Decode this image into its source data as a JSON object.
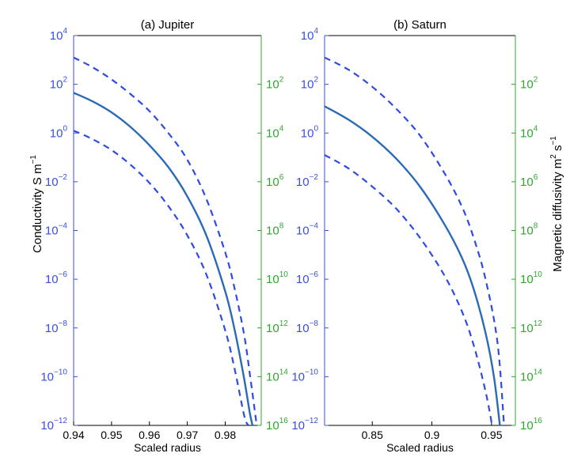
{
  "colors": {
    "conductivity_axis": "#3a4fe0",
    "diffusivity_axis": "#2fa52f",
    "mean_line": "#2b6bb5",
    "bound_lines": "#2f4be0",
    "frame": "#000000"
  },
  "left_axis_label": "Conductivity S m",
  "left_axis_label_exp": "−1",
  "right_axis_label": "Magnetic diffusivity m",
  "right_axis_label_exp1": "2",
  "right_axis_label_mid": " s",
  "right_axis_label_exp2": "−1",
  "chart_data": [
    {
      "type": "line",
      "title": "(a) Jupiter",
      "xlabel": "Scaled radius",
      "ylabel": "Conductivity S m−1",
      "y2label": "",
      "xlim": [
        0.94,
        0.9895
      ],
      "x_ticks": [
        0.94,
        0.95,
        0.96,
        0.97,
        0.98
      ],
      "x_tick_labels": [
        "0.94",
        "0.95",
        "0.96",
        "0.97",
        "0.98"
      ],
      "y_scale": "log",
      "ylim_exp": [
        -12,
        4
      ],
      "y_ticks_exp": [
        4,
        2,
        0,
        -2,
        -4,
        -6,
        -8,
        -10,
        -12
      ],
      "y2_scale": "log-reversed",
      "y2_ticks_exp": [
        2,
        4,
        6,
        8,
        10,
        12,
        14,
        16
      ],
      "series": [
        {
          "style": "dashed",
          "x": [
            0.94,
            0.945,
            0.95,
            0.955,
            0.96,
            0.965,
            0.97,
            0.975,
            0.98,
            0.9825,
            0.985,
            0.9865,
            0.9883
          ],
          "log10_y": [
            3.1,
            2.7,
            2.2,
            1.6,
            0.9,
            0.0,
            -1.1,
            -2.7,
            -4.9,
            -6.4,
            -8.3,
            -9.9,
            -12.0
          ]
        },
        {
          "style": "solid",
          "x": [
            0.94,
            0.945,
            0.95,
            0.955,
            0.96,
            0.965,
            0.97,
            0.975,
            0.98,
            0.9825,
            0.985,
            0.9865,
            0.9872
          ],
          "log10_y": [
            1.65,
            1.3,
            0.85,
            0.25,
            -0.5,
            -1.4,
            -2.6,
            -4.2,
            -6.5,
            -8.1,
            -10.1,
            -11.5,
            -12.0
          ]
        },
        {
          "style": "dashed",
          "x": [
            0.94,
            0.945,
            0.95,
            0.955,
            0.96,
            0.965,
            0.97,
            0.975,
            0.98,
            0.9825,
            0.985,
            0.9861
          ],
          "log10_y": [
            0.1,
            -0.25,
            -0.7,
            -1.3,
            -2.05,
            -3.0,
            -4.2,
            -5.8,
            -8.1,
            -9.7,
            -11.6,
            -12.0
          ]
        }
      ]
    },
    {
      "type": "line",
      "title": "(b) Saturn",
      "xlabel": "Scaled radius",
      "ylabel": "",
      "y2label": "Magnetic diffusivity m2 s−1",
      "xlim": [
        0.81,
        0.97
      ],
      "x_ticks": [
        0.85,
        0.9,
        0.95
      ],
      "x_tick_labels": [
        "0.85",
        "0.9",
        "0.95"
      ],
      "y_scale": "log",
      "ylim_exp": [
        -12,
        4
      ],
      "y_ticks_exp": [
        4,
        2,
        0,
        -2,
        -4,
        -6,
        -8,
        -10,
        -12
      ],
      "y2_scale": "log-reversed",
      "y2_ticks_exp": [
        2,
        4,
        6,
        8,
        10,
        12,
        14,
        16
      ],
      "series": [
        {
          "style": "dashed",
          "x": [
            0.81,
            0.83,
            0.85,
            0.87,
            0.89,
            0.91,
            0.925,
            0.935,
            0.945,
            0.955,
            0.9605
          ],
          "log10_y": [
            3.1,
            2.6,
            1.9,
            1.0,
            -0.1,
            -1.6,
            -3.0,
            -4.3,
            -6.0,
            -8.6,
            -12.0
          ]
        },
        {
          "style": "solid",
          "x": [
            0.81,
            0.83,
            0.85,
            0.87,
            0.89,
            0.91,
            0.925,
            0.935,
            0.945,
            0.952,
            0.957
          ],
          "log10_y": [
            1.1,
            0.55,
            -0.15,
            -1.05,
            -2.2,
            -3.7,
            -5.1,
            -6.4,
            -8.2,
            -10.0,
            -12.0
          ]
        },
        {
          "style": "dashed",
          "x": [
            0.81,
            0.83,
            0.85,
            0.87,
            0.89,
            0.91,
            0.925,
            0.935,
            0.945,
            0.9505
          ],
          "log10_y": [
            -0.9,
            -1.45,
            -2.2,
            -3.1,
            -4.3,
            -5.8,
            -7.3,
            -8.7,
            -10.6,
            -12.0
          ]
        }
      ]
    }
  ]
}
